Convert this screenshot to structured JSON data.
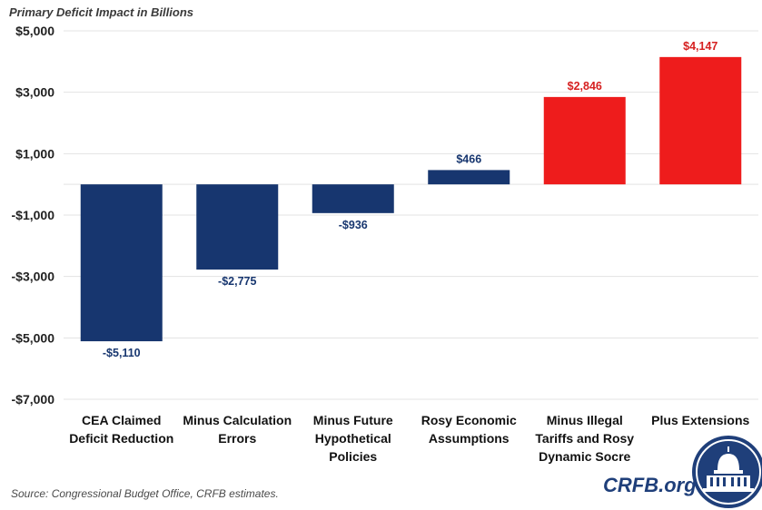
{
  "chart_data": {
    "type": "bar",
    "ylabel": "Primary Deficit Impact in Billions",
    "categories": [
      [
        "CEA Claimed",
        "Deficit Reduction"
      ],
      [
        "Minus Calculation",
        "Errors"
      ],
      [
        "Minus Future",
        "Hypothetical",
        "Policies"
      ],
      [
        "Rosy Economic",
        "Assumptions"
      ],
      [
        "Minus Illegal",
        "Tariffs and Rosy",
        "Dynamic Socre"
      ],
      [
        "Plus Extensions"
      ]
    ],
    "values": [
      -5110,
      -2775,
      -936,
      466,
      2846,
      4147
    ],
    "value_labels": [
      "-$5,110",
      "-$2,775",
      "-$936",
      "$466",
      "$2,846",
      "$4,147"
    ],
    "bar_colors": [
      "#17366f",
      "#17366f",
      "#17366f",
      "#17366f",
      "#ee1c1c",
      "#ee1c1c"
    ],
    "label_colors": [
      "#17366f",
      "#17366f",
      "#17366f",
      "#17366f",
      "#d62020",
      "#d62020"
    ],
    "ylim": [
      -7000,
      5000
    ],
    "yticks": [
      5000,
      3000,
      1000,
      -1000,
      -3000,
      -5000,
      -7000
    ],
    "ytick_labels": [
      "$5,000",
      "$3,000",
      "$1,000",
      "-$1,000",
      "-$3,000",
      "-$5,000",
      "-$7,000"
    ],
    "grid": true,
    "legend": "none"
  },
  "source": "Source: Congressional Budget Office, CRFB estimates.",
  "brand": "CRFB.org"
}
